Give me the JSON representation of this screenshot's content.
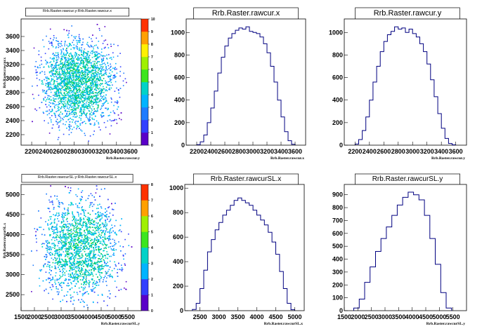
{
  "colors": {
    "histogram_line": "#000080",
    "axis": "#000000",
    "background": "#ffffff"
  },
  "colz_palette": [
    "#5a00c8",
    "#3240ff",
    "#1e7cff",
    "#00b4ff",
    "#00d2c8",
    "#00c864",
    "#3ce61e",
    "#a0f000",
    "#fff000",
    "#ffa000",
    "#ff3200"
  ],
  "panels": [
    {
      "title": "Rrb.Raster.rawcur.y:Rrb.Raster.rawcur.x",
      "xlabel": "Rrb.Raster.rawcur.y",
      "ylabel": "Rrb.Raster.rawcur.x",
      "xticks": [
        "2200",
        "2400",
        "2600",
        "2800",
        "3000",
        "3200",
        "3400",
        "3600"
      ],
      "yticks": [
        "2200",
        "2400",
        "2600",
        "2800",
        "3000",
        "3200",
        "3400",
        "3600"
      ],
      "zticks": [
        "0",
        "1",
        "2",
        "3",
        "4",
        "5",
        "6",
        "7",
        "8",
        "9",
        "10"
      ]
    },
    {
      "title": "Rrb.Raster.rawcur.x",
      "xlabel": "Rrb.Raster.rawcur.x",
      "xticks": [
        "2200",
        "2400",
        "2600",
        "2800",
        "3000",
        "3200",
        "3400",
        "3600"
      ],
      "yticks": [
        "0",
        "200",
        "400",
        "600",
        "800",
        "1000"
      ]
    },
    {
      "title": "Rrb.Raster.rawcur.y",
      "xlabel": "Rrb.Raster.rawcur.y",
      "xticks": [
        "2200",
        "2400",
        "2600",
        "2800",
        "3000",
        "3200",
        "3400",
        "3600"
      ],
      "yticks": [
        "0",
        "200",
        "400",
        "600",
        "800",
        "1000"
      ]
    },
    {
      "title": "Rrb.Raster.rawcurSL.y:Rrb.Raster.rawcurSL.x",
      "xlabel": "Rrb.Raster.rawcurSL.y",
      "ylabel": "Rrb.Raster.rawcurSL.x",
      "xticks": [
        "1500",
        "2000",
        "2500",
        "3000",
        "3500",
        "4000",
        "4500",
        "5000",
        "5500"
      ],
      "yticks": [
        "2500",
        "3000",
        "3500",
        "4000",
        "4500",
        "5000"
      ],
      "zticks": [
        "0",
        "1",
        "2",
        "3",
        "4",
        "5",
        "6",
        "7",
        "8"
      ]
    },
    {
      "title": "Rrb.Raster.rawcurSL.x",
      "xlabel": "Rrb.Raster.rawcurSL.x",
      "xticks": [
        "2500",
        "3000",
        "3500",
        "4000",
        "4500",
        "5000"
      ],
      "yticks": [
        "0",
        "200",
        "400",
        "600",
        "800",
        "1000"
      ]
    },
    {
      "title": "Rrb.Raster.rawcurSL.y",
      "xlabel": "Rrb.Raster.rawcurSL.y",
      "xticks": [
        "1500",
        "2000",
        "2500",
        "3000",
        "3500",
        "4000",
        "4500",
        "5000",
        "5500"
      ],
      "yticks": [
        "0",
        "100",
        "200",
        "300",
        "400",
        "500",
        "600",
        "700",
        "800",
        "900"
      ]
    }
  ],
  "chart_data": [
    {
      "type": "heatmap",
      "title": "Rrb.Raster.rawcur.y:Rrb.Raster.rawcur.x",
      "xlabel": "Rrb.Raster.rawcur.y",
      "ylabel": "Rrb.Raster.rawcur.x",
      "xlim": [
        2050,
        3750
      ],
      "ylim": [
        2050,
        3850
      ],
      "zlim": [
        0,
        10
      ],
      "center": [
        2850,
        2950
      ],
      "half_width": [
        550,
        650
      ],
      "xticks": [
        2200,
        2400,
        2600,
        2800,
        3000,
        3200,
        3400,
        3600
      ],
      "yticks": [
        2200,
        2400,
        2600,
        2800,
        3000,
        3200,
        3400,
        3600
      ]
    },
    {
      "type": "histogram",
      "title": "Rrb.Raster.rawcur.x",
      "xlabel": "Rrb.Raster.rawcur.x",
      "xlim": [
        2050,
        3750
      ],
      "ylim": [
        0,
        1120
      ],
      "x": [
        2225,
        2275,
        2325,
        2375,
        2425,
        2475,
        2525,
        2575,
        2625,
        2675,
        2725,
        2775,
        2825,
        2875,
        2925,
        2975,
        3025,
        3075,
        3125,
        3175,
        3225,
        3275,
        3325,
        3375,
        3425,
        3475,
        3525,
        3575
      ],
      "values": [
        5,
        30,
        90,
        200,
        330,
        480,
        640,
        780,
        880,
        950,
        990,
        1020,
        1040,
        1030,
        1050,
        1010,
        1000,
        990,
        960,
        900,
        820,
        700,
        560,
        400,
        250,
        120,
        40,
        8
      ],
      "xticks": [
        2200,
        2400,
        2600,
        2800,
        3000,
        3200,
        3400,
        3600
      ],
      "yticks": [
        0,
        200,
        400,
        600,
        800,
        1000
      ]
    },
    {
      "type": "histogram",
      "title": "Rrb.Raster.rawcur.y",
      "xlabel": "Rrb.Raster.rawcur.y",
      "xlim": [
        2050,
        3750
      ],
      "ylim": [
        0,
        1120
      ],
      "x": [
        2225,
        2275,
        2325,
        2375,
        2425,
        2475,
        2525,
        2575,
        2625,
        2675,
        2725,
        2775,
        2825,
        2875,
        2925,
        2975,
        3025,
        3075,
        3125,
        3175,
        3225,
        3275,
        3325,
        3375,
        3425,
        3475,
        3525,
        3575
      ],
      "values": [
        10,
        50,
        130,
        250,
        400,
        560,
        700,
        830,
        920,
        980,
        1010,
        1050,
        1030,
        1040,
        1000,
        1030,
        990,
        960,
        900,
        830,
        720,
        580,
        430,
        280,
        150,
        60,
        15,
        3
      ],
      "xticks": [
        2200,
        2400,
        2600,
        2800,
        3000,
        3200,
        3400,
        3600
      ],
      "yticks": [
        0,
        200,
        400,
        600,
        800,
        1000
      ]
    },
    {
      "type": "heatmap",
      "title": "Rrb.Raster.rawcurSL.y:Rrb.Raster.rawcurSL.x",
      "xlabel": "Rrb.Raster.rawcurSL.y",
      "ylabel": "Rrb.Raster.rawcurSL.x",
      "xlim": [
        1500,
        6000
      ],
      "ylim": [
        2100,
        5250
      ],
      "zlim": [
        0,
        8
      ],
      "center": [
        3700,
        3700
      ],
      "half_width": [
        1550,
        1300
      ],
      "xticks": [
        1500,
        2000,
        2500,
        3000,
        3500,
        4000,
        4500,
        5000,
        5500
      ],
      "yticks": [
        2500,
        3000,
        3500,
        4000,
        4500,
        5000
      ]
    },
    {
      "type": "histogram",
      "title": "Rrb.Raster.rawcurSL.x",
      "xlabel": "Rrb.Raster.rawcurSL.x",
      "xlim": [
        2100,
        5250
      ],
      "ylim": [
        0,
        1030
      ],
      "x": [
        2350,
        2450,
        2550,
        2650,
        2750,
        2850,
        2950,
        3050,
        3150,
        3250,
        3350,
        3450,
        3550,
        3650,
        3750,
        3850,
        3950,
        4050,
        4150,
        4250,
        4350,
        4450,
        4550,
        4650,
        4750,
        4850,
        4950
      ],
      "values": [
        10,
        60,
        180,
        330,
        480,
        580,
        660,
        720,
        780,
        820,
        860,
        900,
        920,
        900,
        880,
        860,
        820,
        780,
        740,
        700,
        640,
        560,
        460,
        320,
        180,
        60,
        8
      ],
      "xticks": [
        2500,
        3000,
        3500,
        4000,
        4500,
        5000
      ],
      "yticks": [
        0,
        200,
        400,
        600,
        800,
        1000
      ]
    },
    {
      "type": "histogram",
      "title": "Rrb.Raster.rawcurSL.y",
      "xlabel": "Rrb.Raster.rawcurSL.y",
      "xlim": [
        1500,
        6000
      ],
      "ylim": [
        0,
        980
      ],
      "x": [
        1950,
        2150,
        2350,
        2550,
        2750,
        2950,
        3150,
        3350,
        3550,
        3750,
        3950,
        4150,
        4350,
        4550,
        4750,
        4950,
        5150,
        5350
      ],
      "values": [
        20,
        90,
        220,
        340,
        460,
        560,
        650,
        740,
        820,
        880,
        920,
        900,
        860,
        740,
        560,
        360,
        140,
        20
      ],
      "xticks": [
        1500,
        2000,
        2500,
        3000,
        3500,
        4000,
        4500,
        5000,
        5500
      ],
      "yticks": [
        0,
        100,
        200,
        300,
        400,
        500,
        600,
        700,
        800,
        900
      ]
    }
  ]
}
